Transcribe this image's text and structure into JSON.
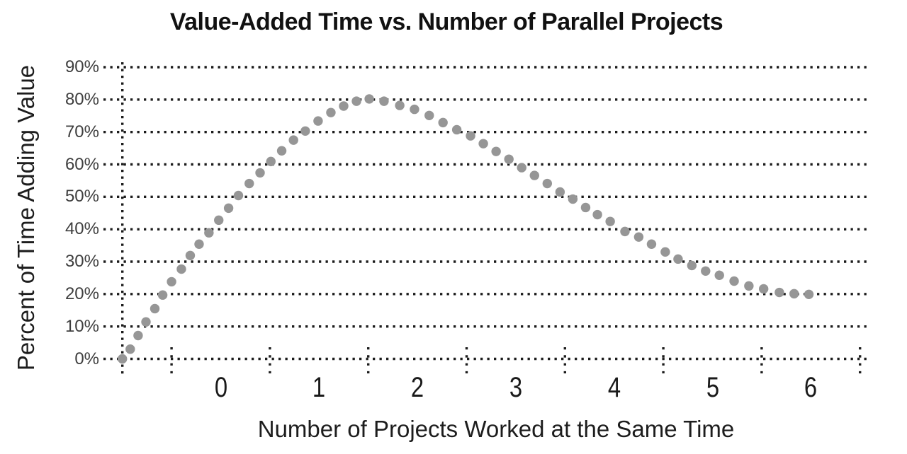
{
  "chart_data": {
    "type": "scatter",
    "title": "Value-Added Time vs. Number of Parallel Projects",
    "xlabel": "Number of Projects Worked at the Same Time",
    "ylabel": "Percent of Time Adding Value",
    "x_ticks": [
      "0",
      "1",
      "2",
      "3",
      "4",
      "5",
      "6"
    ],
    "y_ticks": [
      "90%",
      "80%",
      "70%",
      "60%",
      "50%",
      "40%",
      "30%",
      "20%",
      "10%",
      "0%"
    ],
    "y_tick_values": [
      90,
      80,
      70,
      60,
      50,
      40,
      30,
      20,
      10,
      0
    ],
    "xlim": [
      -1.2,
      6.55
    ],
    "ylim": [
      0,
      90
    ],
    "grid": "dotted horizontal gridlines every 10%; dotted vertical line at curve start (x = -1); dotted tick marks on x axis at half-unit positions",
    "legend": "none",
    "series": [
      {
        "name": "percent-of-time-adding-value",
        "style": "round gray markers equally spaced along a smooth curve (dotted-line curve)",
        "points": [
          [
            -1.0,
            0.0
          ],
          [
            -0.92,
            3.0
          ],
          [
            -0.84,
            7.2
          ],
          [
            -0.76,
            11.4
          ],
          [
            -0.67,
            15.5
          ],
          [
            -0.59,
            19.7
          ],
          [
            -0.5,
            23.8
          ],
          [
            -0.4,
            27.7
          ],
          [
            -0.31,
            31.9
          ],
          [
            -0.22,
            35.4
          ],
          [
            -0.12,
            38.9
          ],
          [
            -0.02,
            42.8
          ],
          [
            0.08,
            46.5
          ],
          [
            0.18,
            50.4
          ],
          [
            0.29,
            54.1
          ],
          [
            0.4,
            57.4
          ],
          [
            0.51,
            60.9
          ],
          [
            0.62,
            64.2
          ],
          [
            0.74,
            67.5
          ],
          [
            0.86,
            70.3
          ],
          [
            0.99,
            73.4
          ],
          [
            1.12,
            76.0
          ],
          [
            1.25,
            78.0
          ],
          [
            1.38,
            79.5
          ],
          [
            1.51,
            80.2
          ],
          [
            1.66,
            79.5
          ],
          [
            1.82,
            78.2
          ],
          [
            1.97,
            77.0
          ],
          [
            2.12,
            75.1
          ],
          [
            2.26,
            72.9
          ],
          [
            2.4,
            70.7
          ],
          [
            2.54,
            68.8
          ],
          [
            2.67,
            66.4
          ],
          [
            2.8,
            64.0
          ],
          [
            2.93,
            61.6
          ],
          [
            3.06,
            59.0
          ],
          [
            3.19,
            56.6
          ],
          [
            3.32,
            54.1
          ],
          [
            3.45,
            51.5
          ],
          [
            3.58,
            49.3
          ],
          [
            3.71,
            46.7
          ],
          [
            3.83,
            44.5
          ],
          [
            3.96,
            42.4
          ],
          [
            4.11,
            39.3
          ],
          [
            4.25,
            37.6
          ],
          [
            4.38,
            35.4
          ],
          [
            4.52,
            33.0
          ],
          [
            4.65,
            30.8
          ],
          [
            4.79,
            28.8
          ],
          [
            4.93,
            27.1
          ],
          [
            5.07,
            25.8
          ],
          [
            5.22,
            24.0
          ],
          [
            5.37,
            22.5
          ],
          [
            5.52,
            21.6
          ],
          [
            5.68,
            20.5
          ],
          [
            5.83,
            20.1
          ],
          [
            5.98,
            19.9
          ]
        ],
        "peak": {
          "x": 1.5,
          "y": 80
        },
        "start": {
          "x": -1,
          "y": 0
        },
        "end": {
          "x": 6,
          "y": 20
        }
      }
    ],
    "colors": {
      "background": "#ffffff",
      "marker": "#969696",
      "grid": "#1c1c1c",
      "title": "#111111",
      "axis_title": "#1d1d1d",
      "y_tick_label": "#3e3e3e",
      "x_tick_label": "#1a1a1a"
    }
  }
}
